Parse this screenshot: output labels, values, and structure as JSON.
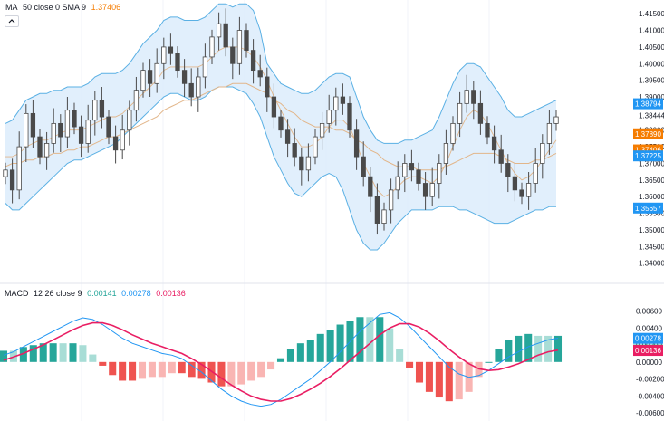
{
  "colors": {
    "up": "#26a69a",
    "up_light": "#a8ddd6",
    "down": "#ef5350",
    "down_light": "#f9b5b3",
    "candle": "#4a4a4a",
    "band_fill": "#dcecfb",
    "band_line": "#5ab0e4",
    "ma_orange": "#e2b68a",
    "macd_line": "#2196f3",
    "signal_line": "#e91e63",
    "grid": "#f0f3fa",
    "axis_text": "#131722"
  },
  "main_legend": {
    "name": "MA",
    "params": "50 close 0 SMA 9",
    "value": "1.37406"
  },
  "macd_legend": {
    "name": "MACD",
    "params": "12 26 close 9",
    "v1": "0.00141",
    "v2": "0.00278",
    "v3": "0.00136"
  },
  "chart_data": [
    {
      "type": "candlestick",
      "y_ticks": [
        "1.41500",
        "1.41000",
        "1.40500",
        "1.40000",
        "1.39500",
        "1.39000",
        "1.38444",
        "1.38000",
        "1.37500",
        "1.37000",
        "1.36500",
        "1.36000",
        "1.35500",
        "1.35000",
        "1.34500",
        "1.34000"
      ],
      "ylim": [
        1.338,
        1.4175
      ],
      "price_labels": [
        {
          "text": "1.38794",
          "value": 1.38794,
          "color": "#2196f3"
        },
        {
          "text": "1.37890",
          "value": 1.3789,
          "color": "#f57c00"
        },
        {
          "text": "1.37406",
          "value": 1.37406,
          "color": "#f57c00"
        },
        {
          "text": "1.37225",
          "value": 1.37225,
          "color": "#2196f3"
        },
        {
          "text": "1.35657",
          "value": 1.35657,
          "color": "#2196f3"
        }
      ],
      "close_series": [
        1.368,
        1.362,
        1.375,
        1.385,
        1.378,
        1.372,
        1.376,
        1.382,
        1.378,
        1.386,
        1.381,
        1.376,
        1.383,
        1.389,
        1.384,
        1.378,
        1.374,
        1.38,
        1.386,
        1.392,
        1.398,
        1.394,
        1.4,
        1.405,
        1.403,
        1.398,
        1.394,
        1.39,
        1.396,
        1.402,
        1.408,
        1.412,
        1.405,
        1.4,
        1.41,
        1.404,
        1.398,
        1.396,
        1.39,
        1.384,
        1.38,
        1.376,
        1.372,
        1.368,
        1.372,
        1.378,
        1.382,
        1.386,
        1.39,
        1.388,
        1.38,
        1.372,
        1.366,
        1.36,
        1.352,
        1.356,
        1.362,
        1.366,
        1.37,
        1.368,
        1.364,
        1.36,
        1.364,
        1.37,
        1.376,
        1.382,
        1.388,
        1.392,
        1.388,
        1.382,
        1.378,
        1.374,
        1.37,
        1.366,
        1.362,
        1.36,
        1.364,
        1.37,
        1.376,
        1.382,
        1.384
      ],
      "upper_band": [
        1.382,
        1.383,
        1.386,
        1.389,
        1.39,
        1.391,
        1.391,
        1.392,
        1.392,
        1.393,
        1.393,
        1.393,
        1.394,
        1.396,
        1.397,
        1.397,
        1.397,
        1.398,
        1.4,
        1.403,
        1.406,
        1.408,
        1.41,
        1.413,
        1.414,
        1.414,
        1.413,
        1.413,
        1.413,
        1.414,
        1.416,
        1.418,
        1.418,
        1.417,
        1.418,
        1.418,
        1.416,
        1.41,
        1.4,
        1.397,
        1.394,
        1.393,
        1.392,
        1.391,
        1.391,
        1.392,
        1.394,
        1.396,
        1.397,
        1.397,
        1.396,
        1.39,
        1.384,
        1.38,
        1.377,
        1.376,
        1.376,
        1.376,
        1.377,
        1.377,
        1.378,
        1.379,
        1.38,
        1.384,
        1.389,
        1.394,
        1.398,
        1.4,
        1.4,
        1.399,
        1.396,
        1.393,
        1.39,
        1.386,
        1.384,
        1.384,
        1.385,
        1.386,
        1.387,
        1.388,
        1.389
      ],
      "lower_band": [
        1.358,
        1.356,
        1.356,
        1.358,
        1.36,
        1.362,
        1.364,
        1.366,
        1.368,
        1.37,
        1.371,
        1.371,
        1.372,
        1.373,
        1.374,
        1.375,
        1.376,
        1.378,
        1.38,
        1.382,
        1.384,
        1.386,
        1.388,
        1.39,
        1.391,
        1.391,
        1.39,
        1.389,
        1.389,
        1.39,
        1.392,
        1.393,
        1.393,
        1.393,
        1.392,
        1.391,
        1.388,
        1.384,
        1.378,
        1.372,
        1.368,
        1.364,
        1.361,
        1.36,
        1.362,
        1.364,
        1.366,
        1.367,
        1.366,
        1.362,
        1.356,
        1.35,
        1.346,
        1.344,
        1.344,
        1.346,
        1.349,
        1.352,
        1.354,
        1.356,
        1.356,
        1.356,
        1.356,
        1.357,
        1.357,
        1.357,
        1.356,
        1.356,
        1.355,
        1.354,
        1.353,
        1.352,
        1.352,
        1.352,
        1.353,
        1.354,
        1.355,
        1.356,
        1.356,
        1.357,
        1.357
      ],
      "ma_fast": [
        1.372,
        1.372,
        1.373,
        1.375,
        1.376,
        1.377,
        1.377,
        1.378,
        1.379,
        1.38,
        1.38,
        1.38,
        1.381,
        1.382,
        1.383,
        1.384,
        1.384,
        1.385,
        1.387,
        1.389,
        1.391,
        1.393,
        1.395,
        1.398,
        1.399,
        1.399,
        1.399,
        1.399,
        1.399,
        1.4,
        1.402,
        1.404,
        1.405,
        1.405,
        1.405,
        1.404,
        1.402,
        1.399,
        1.395,
        1.39,
        1.386,
        1.382,
        1.378,
        1.375,
        1.375,
        1.376,
        1.378,
        1.381,
        1.383,
        1.383,
        1.381,
        1.376,
        1.37,
        1.366,
        1.362,
        1.36,
        1.361,
        1.363,
        1.365,
        1.366,
        1.366,
        1.365,
        1.364,
        1.366,
        1.37,
        1.375,
        1.38,
        1.384,
        1.386,
        1.385,
        1.382,
        1.378,
        1.374,
        1.37,
        1.367,
        1.365,
        1.366,
        1.368,
        1.371,
        1.374,
        1.377
      ],
      "ma_slow": [
        1.369,
        1.37,
        1.37,
        1.371,
        1.371,
        1.372,
        1.372,
        1.373,
        1.373,
        1.374,
        1.374,
        1.375,
        1.375,
        1.376,
        1.377,
        1.378,
        1.378,
        1.379,
        1.38,
        1.381,
        1.382,
        1.383,
        1.384,
        1.386,
        1.387,
        1.388,
        1.389,
        1.389,
        1.39,
        1.391,
        1.392,
        1.393,
        1.393,
        1.394,
        1.394,
        1.394,
        1.393,
        1.392,
        1.391,
        1.389,
        1.388,
        1.386,
        1.385,
        1.383,
        1.382,
        1.381,
        1.381,
        1.381,
        1.38,
        1.38,
        1.379,
        1.377,
        1.376,
        1.374,
        1.373,
        1.371,
        1.37,
        1.369,
        1.369,
        1.369,
        1.368,
        1.368,
        1.368,
        1.368,
        1.369,
        1.37,
        1.371,
        1.372,
        1.373,
        1.373,
        1.373,
        1.373,
        1.372,
        1.371,
        1.37,
        1.37,
        1.37,
        1.371,
        1.371,
        1.372,
        1.373
      ]
    },
    {
      "type": "macd",
      "y_ticks": [
        "0.00600",
        "0.00400",
        "0.00200",
        "0.00000",
        "-0.00200",
        "-0.00400",
        "-0.00600"
      ],
      "ylim": [
        -0.0062,
        0.0068
      ],
      "value_labels": [
        {
          "text": "0.00278",
          "value": 0.00278,
          "color": "#2196f3"
        },
        {
          "text": "0.00141",
          "value": 0.00141,
          "color": "#26a69a"
        },
        {
          "text": "0.00136",
          "value": 0.00136,
          "color": "#e91e63"
        }
      ],
      "macd": [
        0.0008,
        0.0012,
        0.0018,
        0.0024,
        0.003,
        0.0036,
        0.0042,
        0.0048,
        0.0052,
        0.005,
        0.0044,
        0.0036,
        0.0028,
        0.0022,
        0.0018,
        0.0014,
        0.001,
        0.0008,
        0.0004,
        -0.0004,
        -0.0012,
        -0.0022,
        -0.0032,
        -0.004,
        -0.0046,
        -0.005,
        -0.0052,
        -0.005,
        -0.0044,
        -0.0036,
        -0.0028,
        -0.002,
        -0.001,
        0.0,
        0.0012,
        0.0024,
        0.0036,
        0.0046,
        0.0056,
        0.0058,
        0.0052,
        0.0042,
        0.003,
        0.0018,
        0.0006,
        -0.0006,
        -0.0014,
        -0.0018,
        -0.0016,
        -0.001,
        -0.0002,
        0.0006,
        0.0012,
        0.0018,
        0.0022,
        0.0026,
        0.0028
      ],
      "signal": [
        0.0002,
        0.0006,
        0.001,
        0.0015,
        0.002,
        0.0026,
        0.0032,
        0.0038,
        0.0043,
        0.0046,
        0.0046,
        0.0043,
        0.0038,
        0.0032,
        0.0027,
        0.0022,
        0.0018,
        0.0014,
        0.001,
        0.0004,
        -0.0003,
        -0.0011,
        -0.0019,
        -0.0027,
        -0.0034,
        -0.004,
        -0.0044,
        -0.0046,
        -0.0046,
        -0.0043,
        -0.0038,
        -0.0032,
        -0.0025,
        -0.0017,
        -0.0008,
        0.0002,
        0.0012,
        0.0022,
        0.0032,
        0.004,
        0.0045,
        0.0045,
        0.0041,
        0.0034,
        0.0025,
        0.0015,
        0.0006,
        -0.0002,
        -0.0008,
        -0.001,
        -0.0009,
        -0.0006,
        -0.0002,
        0.0003,
        0.0008,
        0.0012,
        0.0014
      ]
    }
  ]
}
